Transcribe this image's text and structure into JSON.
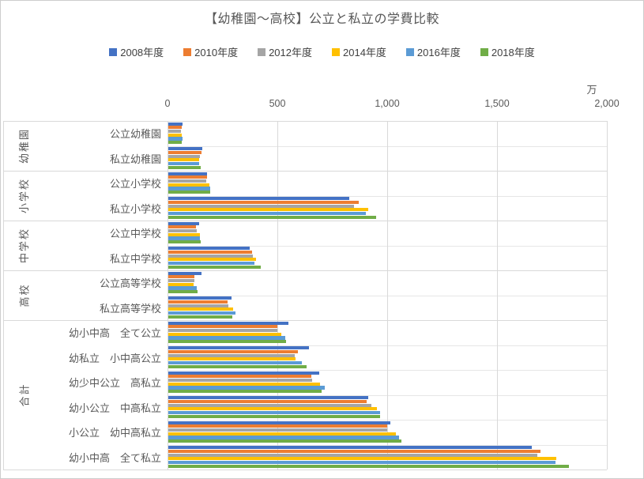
{
  "chart_data": {
    "type": "bar",
    "orientation": "horizontal",
    "title": "【幼稚園～高校】公立と私立の学費比較",
    "unit": "万",
    "xlim": [
      0,
      2000
    ],
    "grid": true,
    "legend_position": "top",
    "x_ticks": [
      {
        "value": 0,
        "label": "0"
      },
      {
        "value": 500,
        "label": "500"
      },
      {
        "value": 1000,
        "label": "1,000"
      },
      {
        "value": 1500,
        "label": "1,500"
      },
      {
        "value": 2000,
        "label": "2,000"
      }
    ],
    "groups": [
      {
        "label": "幼稚園",
        "span": 2
      },
      {
        "label": "小学校",
        "span": 2
      },
      {
        "label": "中学校",
        "span": 2
      },
      {
        "label": "高校",
        "span": 2
      },
      {
        "label": "合計",
        "span": 6
      }
    ],
    "categories": [
      "公立幼稚園",
      "私立幼稚園",
      "公立小学校",
      "私立小学校",
      "公立中学校",
      "私立中学校",
      "公立高等学校",
      "私立高等学校",
      "幼小中高　全て公立",
      "幼私立　小中高公立",
      "幼少中公立　高私立",
      "幼小公立　中高私立",
      "小公立　幼中高私立",
      "幼小中高　全て私立"
    ],
    "series": [
      {
        "name": "2008年度",
        "color": "#4472C4",
        "values": [
          68,
          158,
          181,
          827,
          144,
          374,
          156,
          291,
          552,
          645,
          690,
          914,
          1013,
          1658
        ]
      },
      {
        "name": "2010年度",
        "color": "#ED7D31",
        "values": [
          64,
          156,
          181,
          870,
          129,
          384,
          124,
          273,
          501,
          594,
          654,
          905,
          1001,
          1699
        ]
      },
      {
        "name": "2012年度",
        "color": "#A5A5A5",
        "values": [
          60,
          146,
          176,
          850,
          132,
          387,
          122,
          276,
          501,
          578,
          657,
          927,
          999,
          1685
        ]
      },
      {
        "name": "2014年度",
        "color": "#FFC000",
        "values": [
          63,
          145,
          190,
          914,
          147,
          402,
          120,
          297,
          519,
          582,
          696,
          953,
          1041,
          1769
        ]
      },
      {
        "name": "2016年度",
        "color": "#5B9BD5",
        "values": [
          68,
          145,
          193,
          904,
          147,
          396,
          132,
          309,
          535,
          612,
          717,
          969,
          1055,
          1766
        ]
      },
      {
        "name": "2018年度",
        "color": "#70AD47",
        "values": [
          65,
          151,
          193,
          950,
          151,
          425,
          135,
          294,
          538,
          633,
          701,
          966,
          1065,
          1829
        ]
      }
    ]
  }
}
